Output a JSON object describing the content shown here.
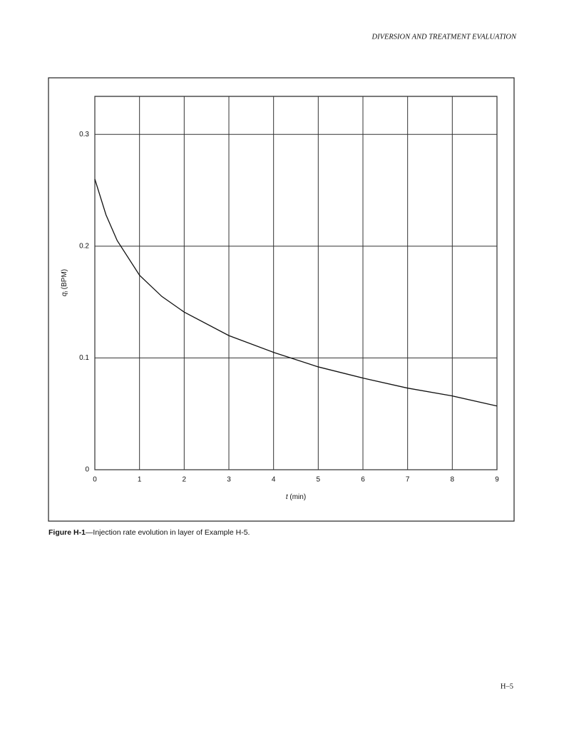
{
  "header": "DIVERSION AND TREATMENT EVALUATION",
  "chart_data": {
    "type": "line",
    "xlabel": [
      "t",
      " (min)"
    ],
    "ylabel": [
      "q",
      "i",
      " (BPM)"
    ],
    "x": [
      0,
      0.25,
      0.5,
      1,
      1.5,
      2,
      3,
      4,
      5,
      6,
      7,
      8,
      9
    ],
    "series": [
      {
        "color": "#111111",
        "values": [
          0.26,
          0.228,
          0.205,
          0.174,
          0.155,
          0.141,
          0.12,
          0.105,
          0.092,
          0.082,
          0.073,
          0.066,
          0.057
        ]
      }
    ],
    "xlim": [
      0,
      9
    ],
    "ylim": [
      0,
      0.334
    ],
    "xticks": [
      0,
      1,
      2,
      3,
      4,
      5,
      6,
      7,
      8,
      9
    ],
    "yticks": [
      0,
      0.1,
      0.2,
      0.3
    ],
    "grid": true
  },
  "caption": {
    "label": "Figure H-1",
    "text": "—Injection rate evolution in layer of Example H-5."
  },
  "page_number": "H–5"
}
